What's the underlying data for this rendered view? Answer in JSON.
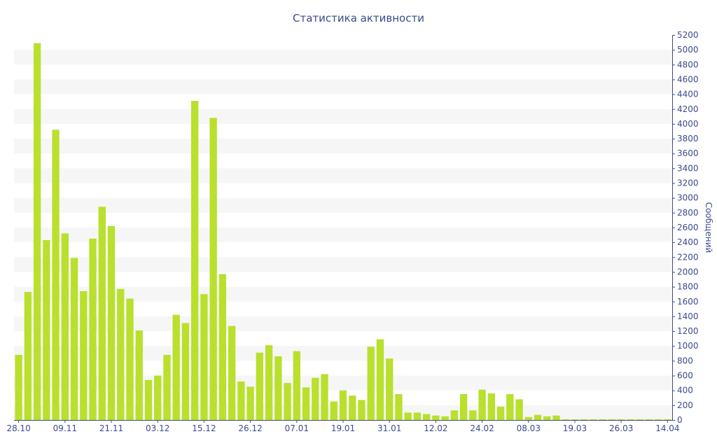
{
  "chart_data": {
    "type": "bar",
    "title": "Статистика активности",
    "ylabel": "Сообщений",
    "xlabel": "",
    "ylim": [
      0,
      5200
    ],
    "y_ticks": [
      0,
      200,
      400,
      600,
      800,
      1000,
      1200,
      1400,
      1600,
      1800,
      2000,
      2200,
      2400,
      2600,
      2800,
      3000,
      3200,
      3400,
      3600,
      3800,
      4000,
      4200,
      4400,
      4600,
      4800,
      5000,
      5200
    ],
    "x_tick_labels": [
      "28.10",
      "09.11",
      "21.11",
      "03.12",
      "15.12",
      "26.12",
      "07.01",
      "19.01",
      "31.01",
      "12.02",
      "24.02",
      "08.03",
      "19.03",
      "26.03",
      "14.04"
    ],
    "x_tick_positions": [
      0,
      5,
      10,
      15,
      20,
      25,
      30,
      35,
      40,
      45,
      50,
      55,
      60,
      65,
      70
    ],
    "grid": "horizontal bands",
    "bar_color": "#b8e02d",
    "band_color": "#f6f6f6",
    "text_color": "#3a4a8c",
    "values": [
      880,
      1730,
      5090,
      2430,
      3920,
      2520,
      2190,
      1740,
      2450,
      2880,
      2620,
      1770,
      1640,
      1210,
      540,
      600,
      880,
      1420,
      1310,
      4310,
      1700,
      4080,
      1970,
      1270,
      520,
      450,
      910,
      1010,
      860,
      500,
      930,
      440,
      570,
      620,
      250,
      400,
      330,
      270,
      990,
      1090,
      830,
      350,
      100,
      100,
      80,
      60,
      50,
      130,
      350,
      130,
      410,
      360,
      180,
      350,
      280,
      40,
      70,
      50,
      60,
      10,
      10,
      10,
      10,
      10,
      10,
      10,
      10,
      10,
      10,
      10,
      10
    ]
  }
}
